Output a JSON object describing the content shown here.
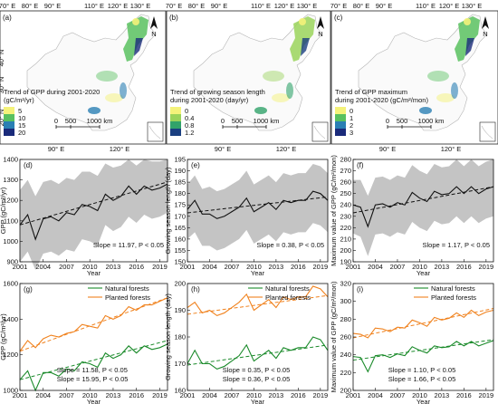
{
  "maps": [
    {
      "panel": "(a)",
      "legend_title_lines": [
        "Trend of GPP during 2001-2020",
        "(gC/m²/yr)"
      ],
      "legend_values": [
        "5",
        "10",
        "15",
        "20"
      ],
      "legend_colors": [
        "#f4f27a",
        "#59c15f",
        "#2a7fb4",
        "#1a2a7a"
      ],
      "top_ticks": [
        "70° E",
        "80° E",
        "90° E",
        "110° E",
        "120° E",
        "130° E"
      ],
      "bottom_ticks": [
        "90° E",
        "120° E"
      ],
      "left_ticks": [
        "40° N",
        "30° N",
        "20° N"
      ],
      "scale_labels": [
        "0",
        "500",
        "1000 km"
      ]
    },
    {
      "panel": "(b)",
      "legend_title_lines": [
        "Trend of growing season length",
        "during 2001-2020 (day/yr)"
      ],
      "legend_values": [
        "0",
        "0.4",
        "0.8",
        "1.2"
      ],
      "legend_colors": [
        "#f4f27a",
        "#9ad35a",
        "#31a36a",
        "#1a3f80"
      ],
      "top_ticks": [
        "70° E",
        "80° E",
        "90° E",
        "110° E",
        "120° E",
        "130° E"
      ],
      "bottom_ticks": [
        "90° E",
        "120° E"
      ],
      "left_ticks": [],
      "scale_labels": [
        "0",
        "500",
        "1000 km"
      ]
    },
    {
      "panel": "(c)",
      "legend_title_lines": [
        "Trend of GPP maximum",
        "during 2001-2020 (gC/m²/mon)"
      ],
      "legend_values": [
        "0",
        "1",
        "2",
        "3"
      ],
      "legend_colors": [
        "#f4f27a",
        "#59c15f",
        "#2a7fb4",
        "#1a2a7a"
      ],
      "top_ticks": [
        "70° E",
        "80° E",
        "90° E",
        "110° E",
        "120° E",
        "130° E"
      ],
      "bottom_ticks": [
        "90° E",
        "120° E"
      ],
      "left_ticks": [],
      "scale_labels": [
        "0",
        "500",
        "1000 km"
      ]
    }
  ],
  "chart_data": [
    {
      "panel": "(d)",
      "type": "line",
      "x": [
        2001,
        2002,
        2003,
        2004,
        2005,
        2006,
        2007,
        2008,
        2009,
        2010,
        2011,
        2012,
        2013,
        2014,
        2015,
        2016,
        2017,
        2018,
        2019,
        2020
      ],
      "series": [
        {
          "values": [
            1080,
            1130,
            1010,
            1110,
            1120,
            1100,
            1140,
            1130,
            1180,
            1170,
            1150,
            1230,
            1200,
            1220,
            1270,
            1230,
            1270,
            1250,
            1260,
            1280
          ]
        }
      ],
      "band_upper": [
        1250,
        1300,
        1220,
        1290,
        1300,
        1280,
        1310,
        1300,
        1340,
        1340,
        1320,
        1380,
        1360,
        1370,
        1400,
        1370,
        1400,
        1390,
        1390,
        1400
      ],
      "band_lower": [
        900,
        950,
        860,
        940,
        950,
        930,
        960,
        950,
        1010,
        1000,
        980,
        1080,
        1050,
        1070,
        1120,
        1090,
        1130,
        1110,
        1120,
        1140
      ],
      "trend": [
        1080,
        1290
      ],
      "ylabel": "GPP (gC/m²/yr)",
      "xlabel": "Year",
      "ylim": [
        900,
        1400
      ],
      "yticks": [
        900,
        1000,
        1100,
        1200,
        1300,
        1400
      ],
      "xticks": [
        2001,
        2004,
        2007,
        2010,
        2013,
        2016,
        2019
      ],
      "annotations": [
        {
          "text": "Slope = 11.97, P < 0.05",
          "color": "#111111"
        }
      ]
    },
    {
      "panel": "(e)",
      "type": "line",
      "x": [
        2001,
        2002,
        2003,
        2004,
        2005,
        2006,
        2007,
        2008,
        2009,
        2010,
        2011,
        2012,
        2013,
        2014,
        2015,
        2016,
        2017,
        2018,
        2019,
        2020
      ],
      "series": [
        {
          "values": [
            173,
            177,
            171,
            171,
            169,
            170,
            172,
            174,
            178,
            172,
            174,
            176,
            173,
            177,
            176,
            177,
            177,
            181,
            180,
            177
          ]
        }
      ],
      "band_upper": [
        184,
        188,
        182,
        183,
        181,
        182,
        184,
        186,
        190,
        184,
        186,
        188,
        185,
        189,
        188,
        189,
        189,
        193,
        192,
        189
      ],
      "band_lower": [
        160,
        163,
        157,
        157,
        155,
        156,
        158,
        160,
        164,
        158,
        160,
        162,
        159,
        163,
        162,
        163,
        163,
        167,
        166,
        163
      ],
      "trend": [
        171.5,
        178.5
      ],
      "ylabel": "Growing season length (day)",
      "xlabel": "Year",
      "ylim": [
        150,
        195
      ],
      "yticks": [
        150,
        155,
        160,
        165,
        170,
        175,
        180,
        185,
        190,
        195
      ],
      "xticks": [
        2001,
        2004,
        2007,
        2010,
        2013,
        2016,
        2019
      ],
      "annotations": [
        {
          "text": "Slope = 0.38, P < 0.05",
          "color": "#111111"
        }
      ]
    },
    {
      "panel": "(f)",
      "type": "line",
      "x": [
        2001,
        2002,
        2003,
        2004,
        2005,
        2006,
        2007,
        2008,
        2009,
        2010,
        2011,
        2012,
        2013,
        2014,
        2015,
        2016,
        2017,
        2018,
        2019,
        2020
      ],
      "series": [
        {
          "values": [
            240,
            238,
            221,
            240,
            241,
            238,
            242,
            240,
            251,
            246,
            243,
            252,
            249,
            250,
            256,
            250,
            256,
            250,
            254,
            256
          ]
        }
      ],
      "band_upper": [
        262,
        262,
        248,
        264,
        265,
        262,
        266,
        264,
        275,
        270,
        267,
        276,
        273,
        274,
        280,
        274,
        280,
        274,
        278,
        280
      ],
      "band_lower": [
        215,
        212,
        195,
        214,
        215,
        212,
        216,
        214,
        225,
        220,
        217,
        226,
        223,
        224,
        230,
        224,
        230,
        224,
        228,
        230
      ],
      "trend": [
        233,
        256
      ],
      "ylabel": "Maximum value of GPP (gC/m²/mon)",
      "xlabel": "Year",
      "ylim": [
        190,
        280
      ],
      "yticks": [
        190,
        200,
        210,
        220,
        230,
        240,
        250,
        260,
        270,
        280
      ],
      "xticks": [
        2001,
        2004,
        2007,
        2010,
        2013,
        2016,
        2019
      ],
      "annotations": [
        {
          "text": "Slope = 1.17, P < 0.05",
          "color": "#111111"
        }
      ]
    },
    {
      "panel": "(g)",
      "type": "line",
      "x": [
        2001,
        2002,
        2003,
        2004,
        2005,
        2006,
        2007,
        2008,
        2009,
        2010,
        2011,
        2012,
        2013,
        2014,
        2015,
        2016,
        2017,
        2018,
        2019,
        2020
      ],
      "series": [
        {
          "name": "Natural forests",
          "color": "#1a8a2a",
          "values": [
            1060,
            1110,
            1000,
            1100,
            1100,
            1080,
            1120,
            1110,
            1160,
            1150,
            1130,
            1210,
            1180,
            1200,
            1250,
            1210,
            1250,
            1230,
            1240,
            1260
          ]
        },
        {
          "name": "Planted forests",
          "color": "#f0821e",
          "values": [
            1220,
            1280,
            1240,
            1290,
            1310,
            1300,
            1320,
            1330,
            1370,
            1360,
            1350,
            1420,
            1400,
            1420,
            1470,
            1450,
            1480,
            1480,
            1500,
            1520
          ]
        }
      ],
      "trends": [
        [
          1060,
          1280
        ],
        [
          1220,
          1520
        ]
      ],
      "ylabel": "GPP (gC/m²/yr)",
      "xlabel": "Year",
      "ylim": [
        1000,
        1600
      ],
      "yticks": [
        1000,
        1200,
        1400,
        1600
      ],
      "xticks": [
        2001,
        2004,
        2007,
        2010,
        2013,
        2016,
        2019
      ],
      "annotations": [
        {
          "text": "Slope = 11.58, P < 0.05",
          "color": "#1a8a2a"
        },
        {
          "text": "Slope = 15.95, P < 0.05",
          "color": "#f0821e"
        }
      ]
    },
    {
      "panel": "(h)",
      "type": "line",
      "x": [
        2001,
        2002,
        2003,
        2004,
        2005,
        2006,
        2007,
        2008,
        2009,
        2010,
        2011,
        2012,
        2013,
        2014,
        2015,
        2016,
        2017,
        2018,
        2019,
        2020
      ],
      "series": [
        {
          "name": "Natural forests",
          "color": "#1a8a2a",
          "values": [
            170,
            175,
            170,
            170,
            168,
            169,
            171,
            173,
            177,
            171,
            173,
            175,
            172,
            176,
            175,
            176,
            176,
            180,
            179,
            175
          ]
        },
        {
          "name": "Planted forests",
          "color": "#f0821e",
          "values": [
            191,
            193,
            189,
            190,
            188,
            189,
            191,
            193,
            196,
            190,
            192,
            194,
            191,
            195,
            194,
            195,
            195,
            199,
            198,
            195
          ]
        }
      ],
      "trends": [
        [
          169.5,
          177
        ],
        [
          188.5,
          195.5
        ]
      ],
      "ylabel": "Growing season length (day)",
      "xlabel": "Year",
      "ylim": [
        160,
        200
      ],
      "yticks": [
        160,
        170,
        180,
        190,
        200
      ],
      "xticks": [
        2001,
        2004,
        2007,
        2010,
        2013,
        2016,
        2019
      ],
      "annotations": [
        {
          "text": "Slope = 0.35, P < 0.05",
          "color": "#1a8a2a"
        },
        {
          "text": "Slope = 0.36, P < 0.05",
          "color": "#f0821e"
        }
      ]
    },
    {
      "panel": "(i)",
      "type": "line",
      "x": [
        2001,
        2002,
        2003,
        2004,
        2005,
        2006,
        2007,
        2008,
        2009,
        2010,
        2011,
        2012,
        2013,
        2014,
        2015,
        2016,
        2017,
        2018,
        2019,
        2020
      ],
      "series": [
        {
          "name": "Natural forests",
          "color": "#1a8a2a",
          "values": [
            238,
            237,
            221,
            239,
            240,
            237,
            241,
            239,
            249,
            245,
            242,
            250,
            248,
            249,
            255,
            250,
            255,
            250,
            253,
            256
          ]
        },
        {
          "name": "Planted forests",
          "color": "#f0821e",
          "values": [
            264,
            263,
            259,
            270,
            269,
            266,
            271,
            270,
            279,
            276,
            272,
            282,
            279,
            281,
            287,
            282,
            290,
            284,
            288,
            290
          ]
        }
      ],
      "trends": [
        [
          234,
          257
        ],
        [
          259,
          292
        ]
      ],
      "ylabel": "Maximum value of GPP (gC/m²/mon)",
      "xlabel": "Year",
      "ylim": [
        200,
        320
      ],
      "yticks": [
        200,
        220,
        240,
        260,
        280,
        300,
        320
      ],
      "xticks": [
        2001,
        2004,
        2007,
        2010,
        2013,
        2016,
        2019
      ],
      "annotations": [
        {
          "text": "Slope = 1.10, P < 0.05",
          "color": "#1a8a2a"
        },
        {
          "text": "Slope = 1.66, P < 0.05",
          "color": "#f0821e"
        }
      ]
    }
  ]
}
